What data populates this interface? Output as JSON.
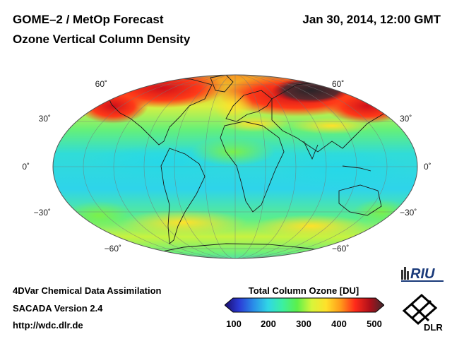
{
  "header": {
    "title": "GOME–2 / MetOp Forecast",
    "subtitle": "Ozone Vertical Column Density",
    "datetime": "Jan 30, 2014, 12:00 GMT"
  },
  "map": {
    "projection": "Mollweide (global)",
    "lat_labels_left": [
      "60˚",
      "30˚",
      "0˚",
      "−30˚",
      "−60˚"
    ],
    "lat_labels_right": [
      "60˚",
      "30˚",
      "0˚",
      "−30˚",
      "−60˚"
    ]
  },
  "colorbar": {
    "title": "Total Column Ozone [DU]",
    "ticks": [
      "100",
      "200",
      "300",
      "400",
      "500"
    ],
    "colors": [
      "#1a0d6b",
      "#2b3bd6",
      "#2a8ee8",
      "#30d7e6",
      "#3cf0a0",
      "#5cf04a",
      "#d8f53a",
      "#ffe12a",
      "#ff9a1a",
      "#ff2a1a",
      "#b0101a",
      "#3a2a2e"
    ]
  },
  "footer": {
    "line1": "4DVar Chemical Data Assimilation",
    "line2": "SACADA Version 2.4",
    "line3": "http://wdc.dlr.de"
  },
  "logos": {
    "riu": "RIU",
    "dlr": "DLR"
  }
}
